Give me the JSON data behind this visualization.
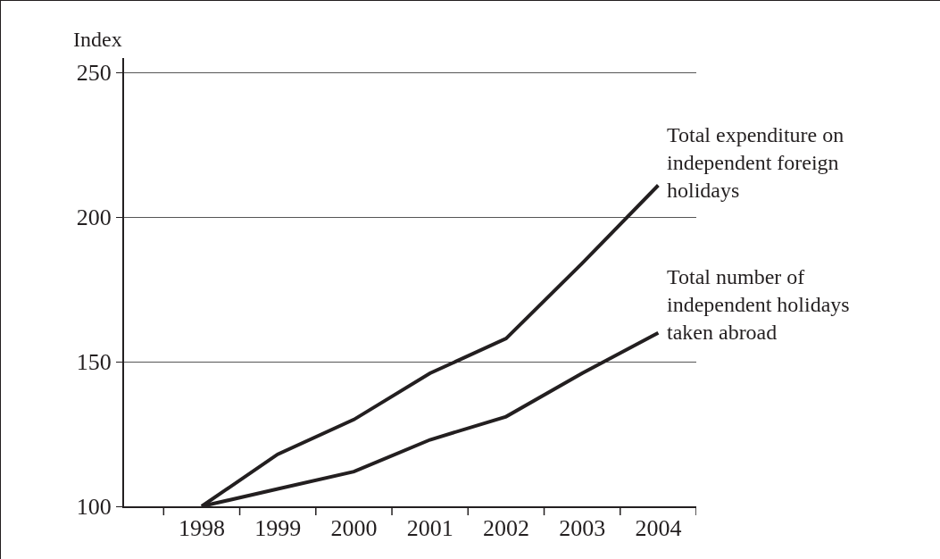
{
  "chart_data": {
    "type": "line",
    "ylabel": "Index",
    "categories": [
      "1998",
      "1999",
      "2000",
      "2001",
      "2002",
      "2003",
      "2004"
    ],
    "series": [
      {
        "name": "Total expenditure on independent foreign holidays",
        "color": "#231f20",
        "values": [
          100,
          118,
          130,
          146,
          158,
          184,
          211
        ]
      },
      {
        "name": "Total number of independent holidays taken abroad",
        "color": "#231f20",
        "values": [
          100,
          106,
          112,
          123,
          131,
          146,
          160
        ]
      }
    ],
    "ylim": [
      100,
      255
    ],
    "yticks": [
      100,
      150,
      200,
      250
    ],
    "grid": "y",
    "legend": false,
    "marker": "none",
    "line_style": "solid"
  }
}
